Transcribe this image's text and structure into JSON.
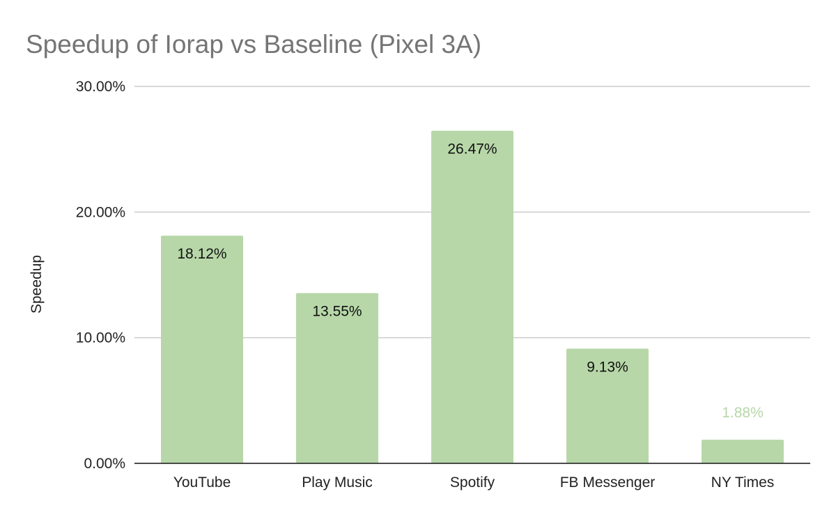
{
  "chart_data": {
    "type": "bar",
    "title": "Speedup of Iorap vs Baseline (Pixel 3A)",
    "xlabel": "",
    "ylabel": "Speedup",
    "categories": [
      "YouTube",
      "Play Music",
      "Spotify",
      "FB Messenger",
      "NY Times"
    ],
    "values": [
      18.12,
      13.55,
      26.47,
      9.13,
      1.88
    ],
    "data_labels": [
      "18.12%",
      "13.55%",
      "26.47%",
      "9.13%",
      "1.88%"
    ],
    "ylim": [
      0,
      30
    ],
    "yticks": [
      0,
      10,
      20,
      30
    ],
    "ytick_labels": [
      "0.00%",
      "10.00%",
      "20.00%",
      "30.00%"
    ],
    "grid": true,
    "legend": "none",
    "colors": {
      "bar": "#b7d7a8",
      "grid": "#cccccc",
      "axis": "#333333",
      "label_inside": "#111111",
      "label_outside": "#b7d7a8",
      "title": "#757575"
    }
  }
}
